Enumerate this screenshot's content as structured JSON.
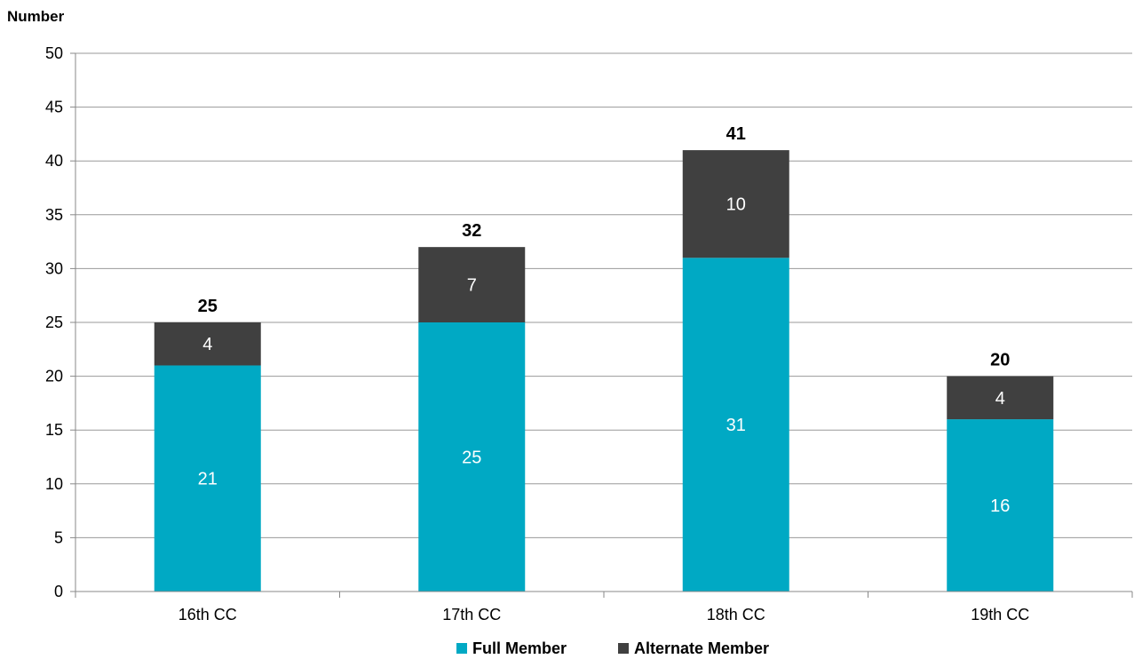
{
  "chart_data": {
    "type": "bar",
    "stacked": true,
    "title": "",
    "xlabel": "",
    "ylabel": "Number",
    "ylim": [
      0,
      50
    ],
    "yticks": [
      0,
      5,
      10,
      15,
      20,
      25,
      30,
      35,
      40,
      45,
      50
    ],
    "grid": true,
    "legend_position": "bottom",
    "categories": [
      "16th CC",
      "17th CC",
      "18th CC",
      "19th CC"
    ],
    "series": [
      {
        "name": "Full Member",
        "color": "#00A9C4",
        "values": [
          21,
          25,
          31,
          16
        ]
      },
      {
        "name": "Alternate Member",
        "color": "#404040",
        "values": [
          4,
          7,
          10,
          4
        ]
      }
    ],
    "totals": [
      25,
      32,
      41,
      20
    ]
  }
}
